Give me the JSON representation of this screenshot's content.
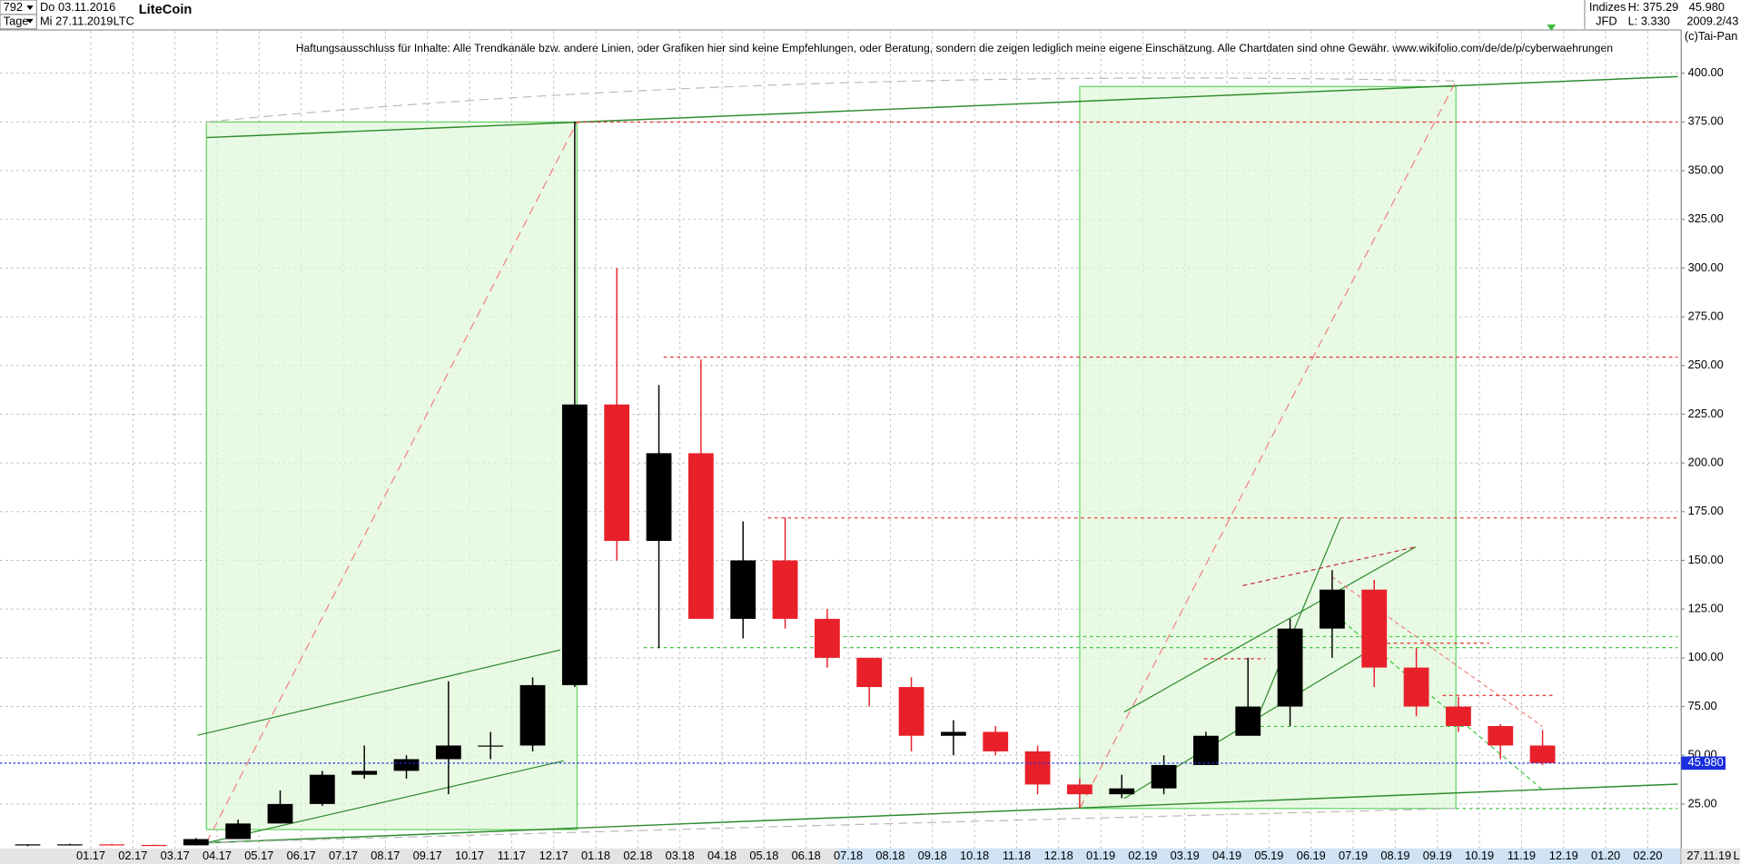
{
  "header": {
    "count": "792",
    "period": "Tage",
    "from": "Do 03.11.2016",
    "to": "Mi 27.11.2019",
    "symbol": "LTC",
    "title": "LiteCoin",
    "group": "Indizes",
    "source": "JFD",
    "high": "H: 375.29",
    "low": "L: 3.330",
    "last": "45.980",
    "version": "2009.2/43",
    "copyright": "(c)Tai-Pan",
    "disclaimer": "Haftungsausschluss für Inhalte: Alle Trendkanäle bzw. andere Linien, oder Grafiken hier sind keine Empfehlungen, oder Beratung, sondern die zeigen lediglich meine eigene Einschätzung. Alle Chartdaten sind ohne Gewähr.  www.wikifolio.com/de/de/p/cyberwaehrungen",
    "end_date": "27.11.19",
    "scale_mode": "L"
  },
  "chart_data": {
    "type": "candlestick",
    "categories": [
      null,
      null,
      "01.17",
      "02.17",
      "03.17",
      "04.17",
      "05.17",
      "06.17",
      "07.17",
      "08.17",
      "09.17",
      "10.17",
      "11.17",
      "12.17",
      "01.18",
      "02.18",
      "03.18",
      "04.18",
      "05.18",
      "06.18",
      "07.18",
      "08.18",
      "09.18",
      "10.18",
      "11.18",
      "12.18",
      "01.19",
      "02.19",
      "03.19",
      "04.19",
      "05.19",
      "06.19",
      "07.19",
      "08.19",
      "09.19",
      "10.19",
      "11.19",
      "12.19",
      "01.20",
      "02.20"
    ],
    "open": [
      4.0,
      4.3,
      4.3,
      4.0,
      3.8,
      7.0,
      15,
      25,
      40,
      42,
      48,
      55,
      55,
      86,
      230,
      160,
      205,
      120,
      150,
      120,
      100,
      85,
      60,
      62,
      52,
      35,
      30,
      33,
      45,
      60,
      75,
      115,
      135,
      95,
      75,
      65,
      55,
      null,
      null,
      null
    ],
    "high": [
      4.3,
      4.6,
      4.6,
      4.2,
      7.5,
      17,
      32,
      42,
      55,
      50,
      88,
      62,
      90,
      375.29,
      300,
      240,
      253,
      170,
      172,
      125,
      100,
      90,
      68,
      65,
      55,
      38,
      40,
      50,
      62,
      100,
      120,
      145,
      140,
      105,
      80,
      66,
      63,
      null,
      null,
      null
    ],
    "low": [
      3.33,
      3.9,
      3.7,
      3.7,
      3.7,
      7.0,
      15,
      24,
      38,
      38,
      30,
      48,
      52,
      85,
      150,
      105,
      120,
      110,
      115,
      95,
      75,
      52,
      50,
      50,
      30,
      23,
      28,
      30,
      45,
      60,
      65,
      100,
      85,
      70,
      62,
      48,
      45,
      null,
      null,
      null
    ],
    "close": [
      4.3,
      4.3,
      4.0,
      3.8,
      7.0,
      15,
      25,
      40,
      42,
      48,
      55,
      55,
      86,
      230,
      160,
      205,
      120,
      150,
      120,
      100,
      85,
      60,
      62,
      52,
      35,
      30,
      33,
      45,
      60,
      75,
      115,
      135,
      95,
      75,
      65,
      55,
      45.98,
      null,
      null,
      null
    ],
    "up_color": "#000000",
    "down_color": "#e8202a",
    "ylim": [
      2.2,
      421.6
    ],
    "yticks": [
      {
        "value": 25,
        "label": "25.00"
      },
      {
        "value": 50,
        "label": "50.00"
      },
      {
        "value": 75,
        "label": "75.00"
      },
      {
        "value": 100,
        "label": "100.00"
      },
      {
        "value": 125,
        "label": "125.00"
      },
      {
        "value": 150,
        "label": "150.00"
      },
      {
        "value": 175,
        "label": "175.00"
      },
      {
        "value": 200,
        "label": "200.00"
      },
      {
        "value": 225,
        "label": "225.00"
      },
      {
        "value": 250,
        "label": "250.00"
      },
      {
        "value": 275,
        "label": "275.00"
      },
      {
        "value": 300,
        "label": "300.00"
      },
      {
        "value": 325,
        "label": "325.00"
      },
      {
        "value": 350,
        "label": "350.00"
      },
      {
        "value": 375,
        "label": "375.00"
      },
      {
        "value": 400,
        "label": "400.00"
      }
    ],
    "grid": true,
    "current": {
      "value": 45.98,
      "label": "45.980"
    }
  }
}
